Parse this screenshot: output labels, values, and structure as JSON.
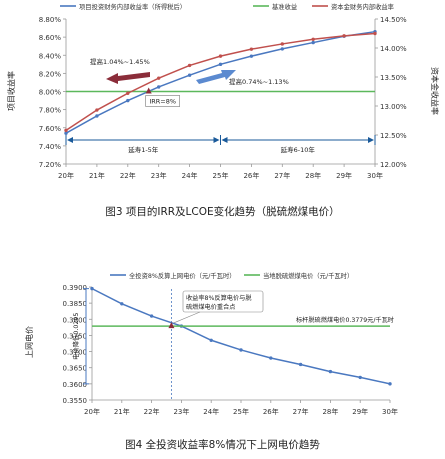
{
  "chart_data": [
    {
      "type": "line",
      "caption": "图3 项目的IRR及LCOE变化趋势（脱硫燃煤电价）",
      "categories": [
        "20年",
        "21年",
        "22年",
        "23年",
        "24年",
        "25年",
        "26年",
        "27年",
        "28年",
        "29年",
        "30年"
      ],
      "ylabel": "项目收益率",
      "y2label": "资本金收益率",
      "ylim": [
        7.2,
        8.8
      ],
      "yticks": [
        "7.20%",
        "7.40%",
        "7.60%",
        "7.80%",
        "8.00%",
        "8.20%",
        "8.40%",
        "8.60%",
        "8.80%"
      ],
      "y2lim": [
        12.0,
        14.5
      ],
      "y2ticks": [
        "12.00%",
        "12.50%",
        "13.00%",
        "13.50%",
        "14.00%",
        "14.50%"
      ],
      "legend_position": "top",
      "series": [
        {
          "name": "项目投资财务内部收益率（所得税后）",
          "axis": "left",
          "color": "#4a78c0",
          "values": [
            7.54,
            7.73,
            7.9,
            8.05,
            8.18,
            8.3,
            8.39,
            8.47,
            8.54,
            8.61,
            8.66
          ]
        },
        {
          "name": "基准收益",
          "axis": "left",
          "color": "#5cb85c",
          "values": [
            8.0,
            8.0,
            8.0,
            8.0,
            8.0,
            8.0,
            8.0,
            8.0,
            8.0,
            8.0,
            8.0
          ]
        },
        {
          "name": "资本金财务内部收益率",
          "axis": "right",
          "color": "#c0504d",
          "values": [
            12.58,
            12.93,
            13.22,
            13.48,
            13.7,
            13.86,
            13.98,
            14.07,
            14.15,
            14.21,
            14.25
          ]
        }
      ],
      "annotations": {
        "irr_label": "IRR=8%",
        "increase1": "提高1.04%~1.45%",
        "increase2": "提高0.74%~1.13%",
        "span1": "延寿1-5年",
        "span2": "延寿6-10年"
      }
    },
    {
      "type": "line",
      "caption": "图4 全投资收益率8%情况下上网电价趋势",
      "categories": [
        "20年",
        "21年",
        "22年",
        "23年",
        "24年",
        "25年",
        "26年",
        "27年",
        "28年",
        "29年",
        "30年"
      ],
      "ylabel": "上网电价",
      "ylim": [
        0.355,
        0.39
      ],
      "yticks": [
        "0.3550",
        "0.3600",
        "0.3650",
        "0.3700",
        "0.3750",
        "0.3800",
        "0.3850",
        "0.3900"
      ],
      "legend_position": "top",
      "series": [
        {
          "name": "全投资8%反算上网电价（元/千瓦时）",
          "color": "#4a78c0",
          "values": [
            0.3895,
            0.3848,
            0.381,
            0.3779,
            0.3735,
            0.3705,
            0.368,
            0.366,
            0.3638,
            0.362,
            0.36
          ]
        },
        {
          "name": "当地脱硫燃煤电价（元/千瓦时）",
          "color": "#5cb85c",
          "values": [
            0.3779,
            0.3779,
            0.3779,
            0.3779,
            0.3779,
            0.3779,
            0.3779,
            0.3779,
            0.3779,
            0.3779,
            0.3779
          ]
        }
      ],
      "annotations": {
        "drop_label": "电价降低0.0295",
        "cross_label_1": "收益率8%反算电价与脱",
        "cross_label_2": "硫燃煤电价重合点",
        "benchmark_label": "标杆脱硫燃煤电价0.3779元/千瓦时"
      }
    }
  ]
}
